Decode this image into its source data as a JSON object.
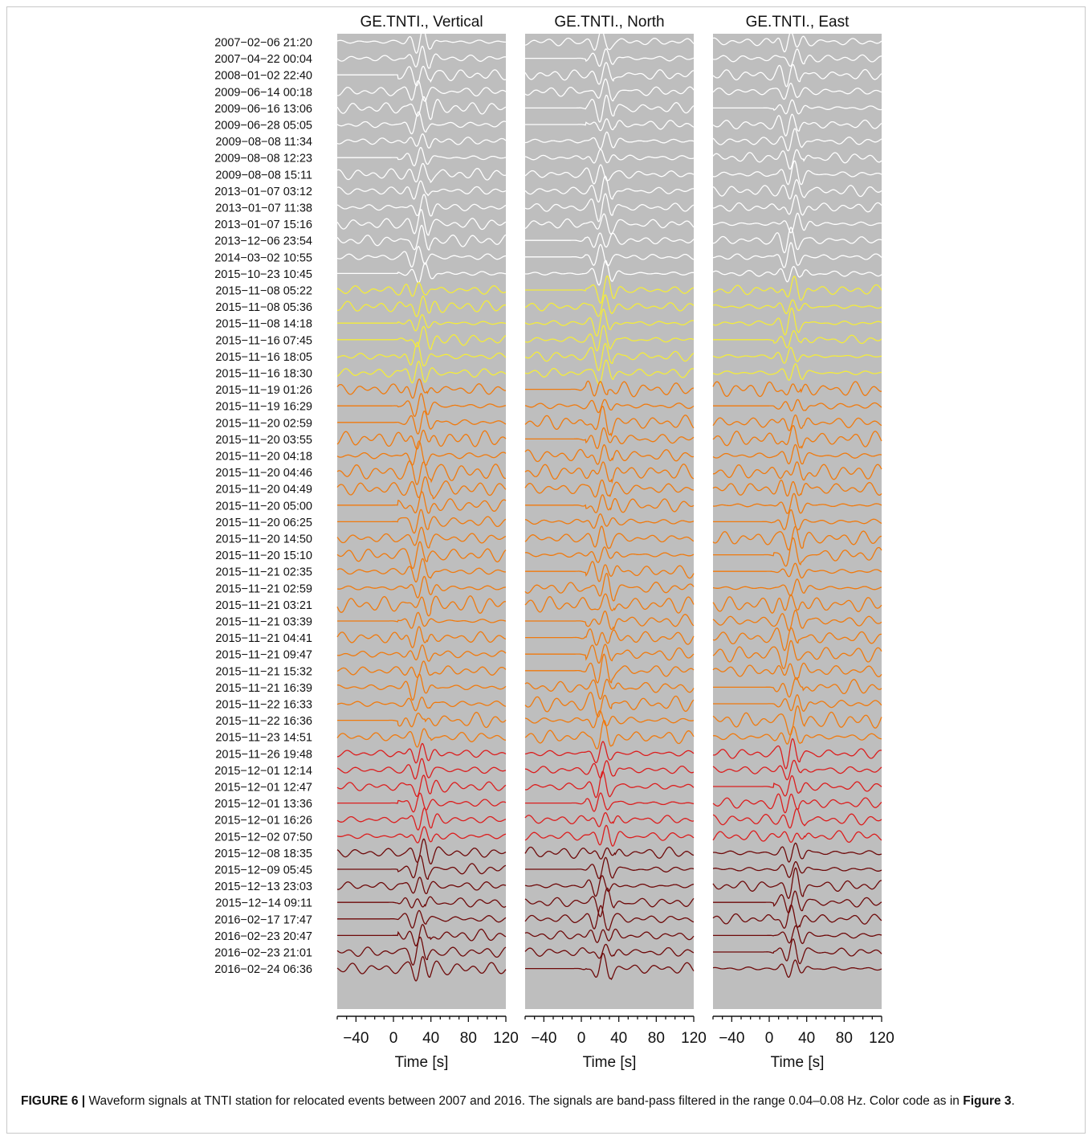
{
  "figure": {
    "caption_label": "FIGURE 6 |",
    "caption_text": " Waveform signals at TNTI station for relocated events between 2007 and 2016. The signals are band-pass filtered in the range 0.04–0.08 Hz. Color code as in ",
    "caption_ref": "Figure 3",
    "caption_end": "."
  },
  "chart_data": {
    "type": "line",
    "description_kind": "seismic waveform record section",
    "panels": [
      {
        "title": "GE.TNTI., Vertical",
        "xlabel": "Time [s]"
      },
      {
        "title": "GE.TNTI., North",
        "xlabel": "Time [s]"
      },
      {
        "title": "GE.TNTI., East",
        "xlabel": "Time [s]"
      }
    ],
    "xlim": [
      -60,
      120
    ],
    "xticks": [
      -40,
      0,
      40,
      80,
      120
    ],
    "xtick_labels": [
      "−40",
      "0",
      "40",
      "80",
      "120"
    ],
    "background": "#bebebe",
    "group_colors": {
      "white": "#ffffff",
      "yellow": "#f4ec3a",
      "orange": "#f07a0e",
      "red": "#dc1e1e",
      "darkred": "#6e0a0a"
    },
    "events": [
      {
        "label": "2007−02−06 21:20",
        "group": "white"
      },
      {
        "label": "2007−04−22 00:04",
        "group": "white"
      },
      {
        "label": "2008−01−02 22:40",
        "group": "white"
      },
      {
        "label": "2009−06−14 00:18",
        "group": "white"
      },
      {
        "label": "2009−06−16 13:06",
        "group": "white"
      },
      {
        "label": "2009−06−28 05:05",
        "group": "white"
      },
      {
        "label": "2009−08−08 11:34",
        "group": "white"
      },
      {
        "label": "2009−08−08 12:23",
        "group": "white"
      },
      {
        "label": "2009−08−08 15:11",
        "group": "white"
      },
      {
        "label": "2013−01−07 03:12",
        "group": "white"
      },
      {
        "label": "2013−01−07 11:38",
        "group": "white"
      },
      {
        "label": "2013−01−07 15:16",
        "group": "white"
      },
      {
        "label": "2013−12−06 23:54",
        "group": "white"
      },
      {
        "label": "2014−03−02 10:55",
        "group": "white"
      },
      {
        "label": "2015−10−23 10:45",
        "group": "white"
      },
      {
        "label": "2015−11−08 05:22",
        "group": "yellow"
      },
      {
        "label": "2015−11−08 05:36",
        "group": "yellow"
      },
      {
        "label": "2015−11−08 14:18",
        "group": "yellow"
      },
      {
        "label": "2015−11−16 07:45",
        "group": "yellow"
      },
      {
        "label": "2015−11−16 18:05",
        "group": "yellow"
      },
      {
        "label": "2015−11−16 18:30",
        "group": "yellow"
      },
      {
        "label": "2015−11−19 01:26",
        "group": "orange"
      },
      {
        "label": "2015−11−19 16:29",
        "group": "orange"
      },
      {
        "label": "2015−11−20 02:59",
        "group": "orange"
      },
      {
        "label": "2015−11−20 03:55",
        "group": "orange"
      },
      {
        "label": "2015−11−20 04:18",
        "group": "orange"
      },
      {
        "label": "2015−11−20 04:46",
        "group": "orange"
      },
      {
        "label": "2015−11−20 04:49",
        "group": "orange"
      },
      {
        "label": "2015−11−20 05:00",
        "group": "orange"
      },
      {
        "label": "2015−11−20 06:25",
        "group": "orange"
      },
      {
        "label": "2015−11−20 14:50",
        "group": "orange"
      },
      {
        "label": "2015−11−20 15:10",
        "group": "orange"
      },
      {
        "label": "2015−11−21 02:35",
        "group": "orange"
      },
      {
        "label": "2015−11−21 02:59",
        "group": "orange"
      },
      {
        "label": "2015−11−21 03:21",
        "group": "orange"
      },
      {
        "label": "2015−11−21 03:39",
        "group": "orange"
      },
      {
        "label": "2015−11−21 04:41",
        "group": "orange"
      },
      {
        "label": "2015−11−21 09:47",
        "group": "orange"
      },
      {
        "label": "2015−11−21 15:32",
        "group": "orange"
      },
      {
        "label": "2015−11−21 16:39",
        "group": "orange"
      },
      {
        "label": "2015−11−22 16:33",
        "group": "orange"
      },
      {
        "label": "2015−11−22 16:36",
        "group": "orange"
      },
      {
        "label": "2015−11−23 14:51",
        "group": "orange"
      },
      {
        "label": "2015−11−26 19:48",
        "group": "red"
      },
      {
        "label": "2015−12−01 12:14",
        "group": "red"
      },
      {
        "label": "2015−12−01 12:47",
        "group": "red"
      },
      {
        "label": "2015−12−01 13:36",
        "group": "red"
      },
      {
        "label": "2015−12−01 16:26",
        "group": "red"
      },
      {
        "label": "2015−12−02 07:50",
        "group": "red"
      },
      {
        "label": "2015−12−08 18:35",
        "group": "darkred"
      },
      {
        "label": "2015−12−09 05:45",
        "group": "darkred"
      },
      {
        "label": "2015−12−13 23:03",
        "group": "darkred"
      },
      {
        "label": "2015−12−14 09:11",
        "group": "darkred"
      },
      {
        "label": "2016−02−17 17:47",
        "group": "darkred"
      },
      {
        "label": "2016−02−23 20:47",
        "group": "darkred"
      },
      {
        "label": "2016−02−23 21:01",
        "group": "darkred"
      },
      {
        "label": "2016−02−24 06:36",
        "group": "darkred"
      }
    ]
  }
}
